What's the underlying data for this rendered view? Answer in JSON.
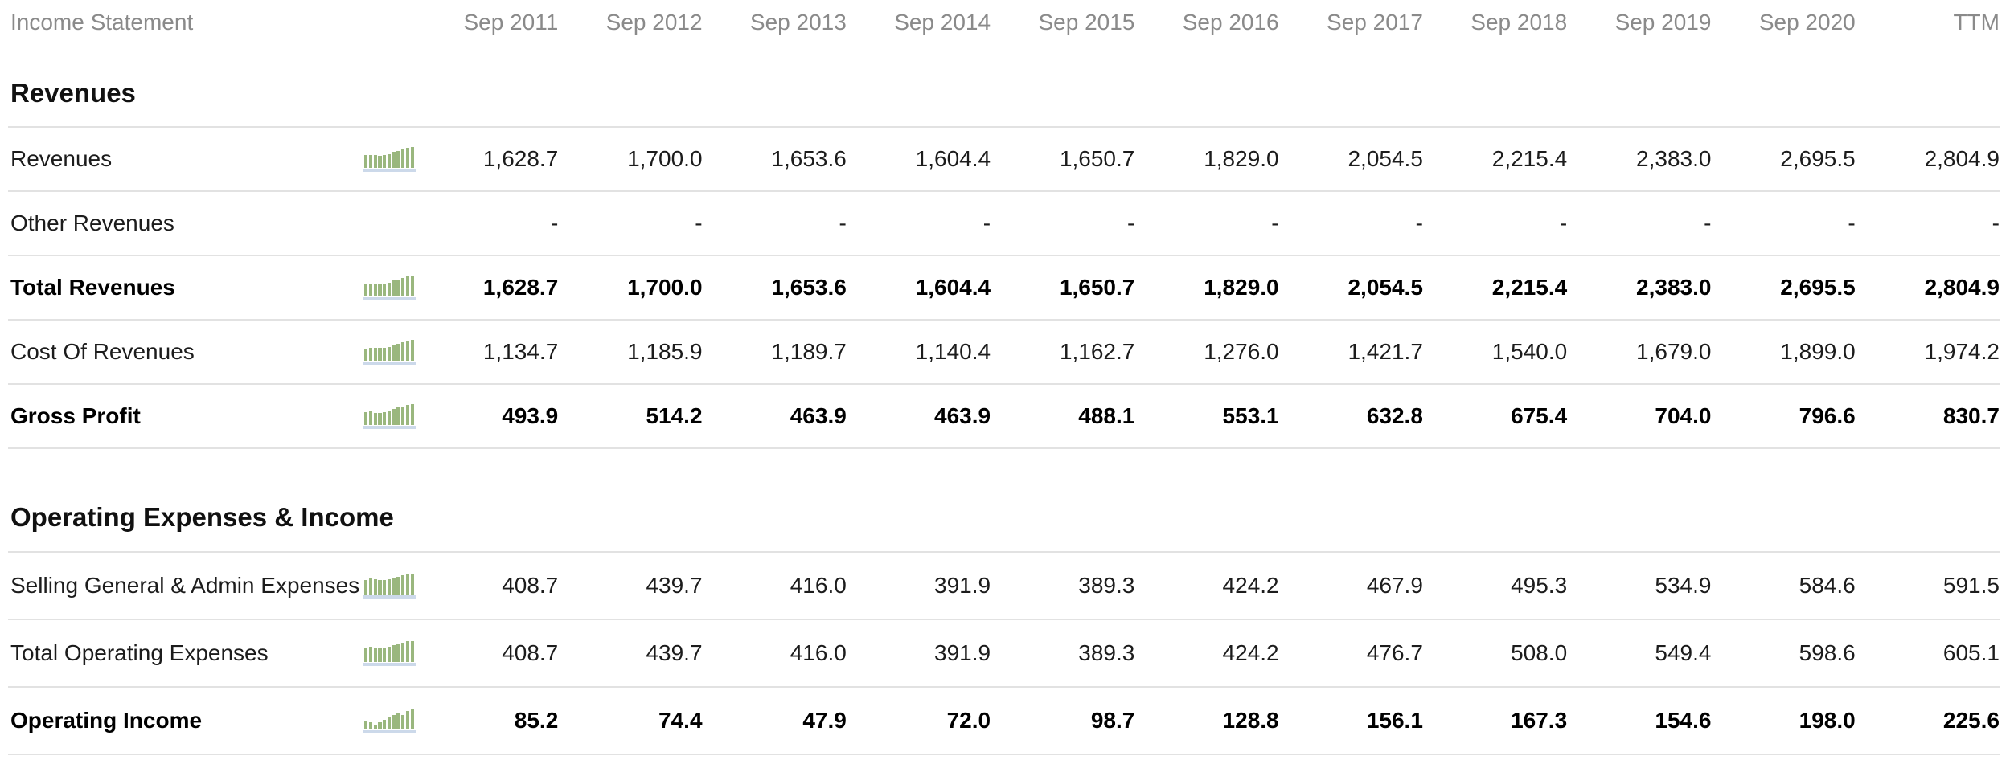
{
  "title": "Income Statement",
  "columns": [
    "Sep 2011",
    "Sep 2012",
    "Sep 2013",
    "Sep 2014",
    "Sep 2015",
    "Sep 2016",
    "Sep 2017",
    "Sep 2018",
    "Sep 2019",
    "Sep 2020",
    "TTM"
  ],
  "sections": [
    {
      "heading": "Revenues",
      "rows": [
        {
          "label": "Revenues",
          "bold": false,
          "sparkline": true,
          "values": [
            "1,628.7",
            "1,700.0",
            "1,653.6",
            "1,604.4",
            "1,650.7",
            "1,829.0",
            "2,054.5",
            "2,215.4",
            "2,383.0",
            "2,695.5",
            "2,804.9"
          ]
        },
        {
          "label": "Other Revenues",
          "bold": false,
          "sparkline": false,
          "values": [
            "-",
            "-",
            "-",
            "-",
            "-",
            "-",
            "-",
            "-",
            "-",
            "-",
            "-"
          ]
        },
        {
          "label": "Total Revenues",
          "bold": true,
          "sparkline": true,
          "values": [
            "1,628.7",
            "1,700.0",
            "1,653.6",
            "1,604.4",
            "1,650.7",
            "1,829.0",
            "2,054.5",
            "2,215.4",
            "2,383.0",
            "2,695.5",
            "2,804.9"
          ]
        },
        {
          "label": "Cost Of Revenues",
          "bold": false,
          "sparkline": true,
          "values": [
            "1,134.7",
            "1,185.9",
            "1,189.7",
            "1,140.4",
            "1,162.7",
            "1,276.0",
            "1,421.7",
            "1,540.0",
            "1,679.0",
            "1,899.0",
            "1,974.2"
          ]
        },
        {
          "label": "Gross Profit",
          "bold": true,
          "sparkline": true,
          "values": [
            "493.9",
            "514.2",
            "463.9",
            "463.9",
            "488.1",
            "553.1",
            "632.8",
            "675.4",
            "704.0",
            "796.6",
            "830.7"
          ]
        }
      ]
    },
    {
      "heading": "Operating Expenses & Income",
      "rows": [
        {
          "label": "Selling General & Admin Expenses",
          "bold": false,
          "sparkline": true,
          "values": [
            "408.7",
            "439.7",
            "416.0",
            "391.9",
            "389.3",
            "424.2",
            "467.9",
            "495.3",
            "534.9",
            "584.6",
            "591.5"
          ]
        },
        {
          "label": "Total Operating Expenses",
          "bold": false,
          "sparkline": true,
          "values": [
            "408.7",
            "439.7",
            "416.0",
            "391.9",
            "389.3",
            "424.2",
            "476.7",
            "508.0",
            "549.4",
            "598.6",
            "605.1"
          ]
        },
        {
          "label": "Operating Income",
          "bold": true,
          "sparkline": true,
          "values": [
            "85.2",
            "74.4",
            "47.9",
            "72.0",
            "98.7",
            "128.8",
            "156.1",
            "167.3",
            "154.6",
            "198.0",
            "225.6"
          ]
        }
      ]
    }
  ],
  "icons": {
    "sparkline": "mini-bar-chart-icon"
  },
  "colors": {
    "header_text": "#8a8a8a",
    "row_text": "#1c1c1c",
    "bold_text": "#000000",
    "divider": "#e2e2e2",
    "sparkline_bar": "#9ab77e",
    "sparkline_base": "#ccd9ea"
  }
}
